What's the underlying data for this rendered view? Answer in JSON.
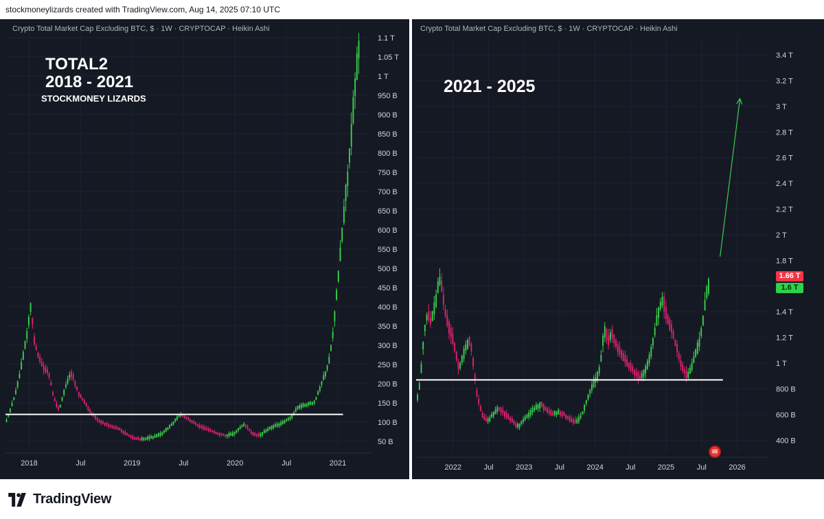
{
  "header": {
    "text": "stockmoneylizards created with TradingView.com, Aug 14, 2025 07:10 UTC"
  },
  "footer": {
    "brand": "TradingView"
  },
  "left": {
    "title": "Crypto Total Market Cap Excluding BTC, $ · 1W · CRYPTOCAP · Heikin Ashi",
    "overlay_1": "TOTAL2",
    "overlay_2": "2018 - 2021",
    "overlay_3": "STOCKMONEY LIZARDS"
  },
  "right": {
    "title": "Crypto Total Market Cap Excluding BTC, $ · 1W · CRYPTOCAP · Heikin Ashi",
    "overlay_1": "2021 - 2025",
    "badge_red": "1.66 T",
    "badge_green": "1.6 T"
  },
  "colors": {
    "up": "#3bd14b",
    "down": "#e0226e",
    "bg": "#151924",
    "line": "#ffffff",
    "arrow": "#3bd14b"
  },
  "chart_data": [
    {
      "type": "candlestick",
      "title": "Crypto Total Market Cap Excluding BTC, $ · 1W · CRYPTOCAP · Heikin Ashi",
      "x_ticks": [
        "2018",
        "Jul",
        "2019",
        "Jul",
        "2020",
        "Jul",
        "2021"
      ],
      "x_tick_pos": [
        2018.0,
        2018.5,
        2019.0,
        2019.5,
        2020.0,
        2020.5,
        2021.0
      ],
      "y_ticks": [
        "50 B",
        "100 B",
        "150 B",
        "200 B",
        "250 B",
        "300 B",
        "350 B",
        "400 B",
        "450 B",
        "500 B",
        "550 B",
        "600 B",
        "650 B",
        "700 B",
        "750 B",
        "800 B",
        "850 B",
        "900 B",
        "950 B",
        "1 T",
        "1.05 T",
        "1.1 T"
      ],
      "y_tick_vals": [
        50,
        100,
        150,
        200,
        250,
        300,
        350,
        400,
        450,
        500,
        550,
        600,
        650,
        700,
        750,
        800,
        850,
        900,
        950,
        1000,
        1050,
        1100
      ],
      "xlim": [
        2017.77,
        2021.32
      ],
      "ylim": [
        30,
        1130
      ],
      "horizontal_line": 120,
      "series_path": [
        [
          2017.78,
          95
        ],
        [
          2017.85,
          150
        ],
        [
          2017.9,
          200
        ],
        [
          2017.95,
          270
        ],
        [
          2018.0,
          350
        ],
        [
          2018.03,
          420
        ],
        [
          2018.05,
          320
        ],
        [
          2018.1,
          270
        ],
        [
          2018.15,
          240
        ],
        [
          2018.2,
          230
        ],
        [
          2018.25,
          160
        ],
        [
          2018.3,
          130
        ],
        [
          2018.37,
          200
        ],
        [
          2018.42,
          230
        ],
        [
          2018.48,
          180
        ],
        [
          2018.55,
          150
        ],
        [
          2018.62,
          120
        ],
        [
          2018.7,
          100
        ],
        [
          2018.8,
          90
        ],
        [
          2018.9,
          80
        ],
        [
          2019.0,
          60
        ],
        [
          2019.1,
          55
        ],
        [
          2019.2,
          60
        ],
        [
          2019.3,
          70
        ],
        [
          2019.4,
          95
        ],
        [
          2019.48,
          120
        ],
        [
          2019.55,
          110
        ],
        [
          2019.65,
          90
        ],
        [
          2019.75,
          80
        ],
        [
          2019.85,
          70
        ],
        [
          2019.93,
          65
        ],
        [
          2020.0,
          70
        ],
        [
          2020.1,
          95
        ],
        [
          2020.18,
          70
        ],
        [
          2020.25,
          65
        ],
        [
          2020.35,
          85
        ],
        [
          2020.45,
          95
        ],
        [
          2020.55,
          110
        ],
        [
          2020.62,
          140
        ],
        [
          2020.7,
          145
        ],
        [
          2020.78,
          150
        ],
        [
          2020.85,
          200
        ],
        [
          2020.92,
          250
        ],
        [
          2020.97,
          350
        ],
        [
          2021.02,
          500
        ],
        [
          2021.07,
          650
        ],
        [
          2021.12,
          780
        ],
        [
          2021.17,
          950
        ],
        [
          2021.22,
          1100
        ]
      ]
    },
    {
      "type": "candlestick",
      "title": "Crypto Total Market Cap Excluding BTC, $ · 1W · CRYPTOCAP · Heikin Ashi",
      "x_ticks": [
        "2022",
        "Jul",
        "2023",
        "Jul",
        "2024",
        "Jul",
        "2025",
        "Jul",
        "2026"
      ],
      "x_tick_pos": [
        2022.0,
        2022.5,
        2023.0,
        2023.5,
        2024.0,
        2024.5,
        2025.0,
        2025.5,
        2026.0
      ],
      "y_ticks": [
        "400 B",
        "600 B",
        "800 B",
        "1 T",
        "1.2 T",
        "1.4 T",
        "1.6 T",
        "1.8 T",
        "2 T",
        "2.2 T",
        "2.4 T",
        "2.6 T",
        "2.8 T",
        "3 T",
        "3.2 T",
        "3.4 T"
      ],
      "y_tick_vals": [
        400,
        600,
        800,
        1000,
        1200,
        1400,
        1600,
        1800,
        2000,
        2200,
        2400,
        2600,
        2800,
        3000,
        3200,
        3400
      ],
      "xlim": [
        2021.48,
        2026.45
      ],
      "ylim": [
        300,
        3550
      ],
      "horizontal_line": 870,
      "last_price_red": 1660,
      "last_price_green": 1600,
      "arrow": {
        "from": [
          2025.76,
          1830
        ],
        "to": [
          2026.04,
          3060
        ]
      },
      "series_path": [
        [
          2021.5,
          700
        ],
        [
          2021.55,
          850
        ],
        [
          2021.6,
          1200
        ],
        [
          2021.65,
          1400
        ],
        [
          2021.7,
          1300
        ],
        [
          2021.78,
          1500
        ],
        [
          2021.83,
          1700
        ],
        [
          2021.87,
          1500
        ],
        [
          2021.92,
          1350
        ],
        [
          2021.97,
          1250
        ],
        [
          2022.03,
          1150
        ],
        [
          2022.1,
          950
        ],
        [
          2022.18,
          1100
        ],
        [
          2022.25,
          1200
        ],
        [
          2022.3,
          1000
        ],
        [
          2022.35,
          750
        ],
        [
          2022.42,
          600
        ],
        [
          2022.5,
          550
        ],
        [
          2022.58,
          600
        ],
        [
          2022.65,
          650
        ],
        [
          2022.75,
          600
        ],
        [
          2022.85,
          550
        ],
        [
          2022.92,
          500
        ],
        [
          2023.0,
          550
        ],
        [
          2023.08,
          600
        ],
        [
          2023.17,
          650
        ],
        [
          2023.25,
          680
        ],
        [
          2023.33,
          640
        ],
        [
          2023.42,
          600
        ],
        [
          2023.5,
          620
        ],
        [
          2023.58,
          600
        ],
        [
          2023.67,
          560
        ],
        [
          2023.75,
          540
        ],
        [
          2023.83,
          600
        ],
        [
          2023.92,
          750
        ],
        [
          2024.0,
          850
        ],
        [
          2024.08,
          950
        ],
        [
          2024.15,
          1300
        ],
        [
          2024.2,
          1150
        ],
        [
          2024.25,
          1250
        ],
        [
          2024.3,
          1150
        ],
        [
          2024.4,
          1050
        ],
        [
          2024.5,
          980
        ],
        [
          2024.58,
          920
        ],
        [
          2024.65,
          880
        ],
        [
          2024.75,
          970
        ],
        [
          2024.83,
          1150
        ],
        [
          2024.9,
          1400
        ],
        [
          2024.97,
          1500
        ],
        [
          2025.03,
          1350
        ],
        [
          2025.1,
          1250
        ],
        [
          2025.17,
          1100
        ],
        [
          2025.25,
          950
        ],
        [
          2025.33,
          900
        ],
        [
          2025.42,
          1050
        ],
        [
          2025.5,
          1200
        ],
        [
          2025.55,
          1400
        ],
        [
          2025.6,
          1600
        ]
      ]
    }
  ]
}
